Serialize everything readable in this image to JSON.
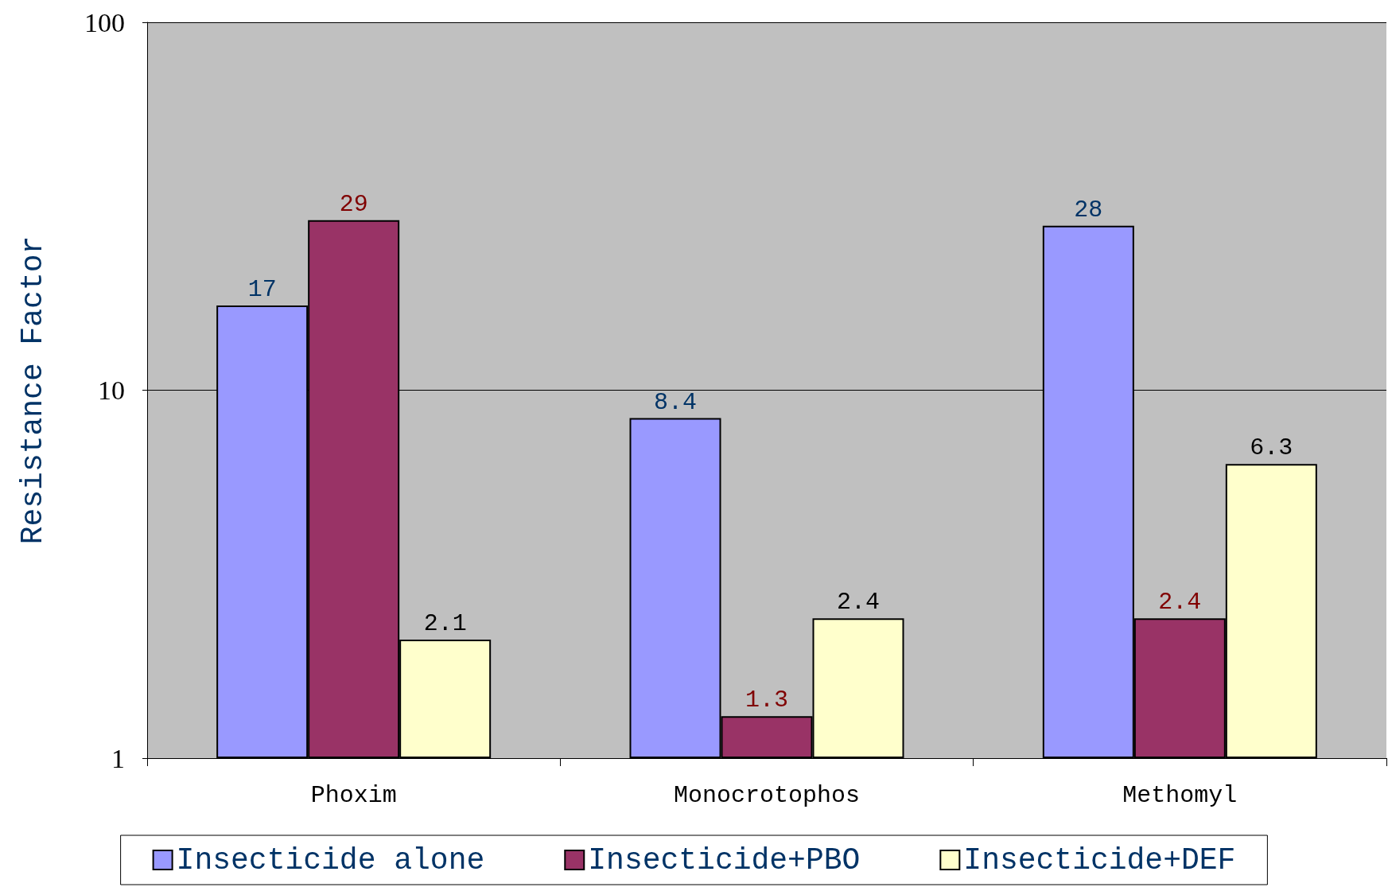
{
  "chart_data": {
    "type": "bar",
    "ylabel": "Resistance Factor",
    "categories": [
      "Phoxim",
      "Monocrotophos",
      "Methomyl"
    ],
    "series": [
      {
        "name": "Insecticide alone",
        "color": "#9999ff",
        "values": [
          17,
          8.4,
          28
        ]
      },
      {
        "name": "Insecticide+PBO",
        "color": "#993366",
        "values": [
          29,
          1.3,
          2.4
        ]
      },
      {
        "name": "Insecticide+DEF",
        "color": "#ffffcc",
        "values": [
          2.1,
          2.4,
          6.3
        ]
      }
    ],
    "log": true,
    "ylim": [
      1,
      100
    ],
    "yticks": [
      1,
      10,
      100
    ],
    "grid": "y",
    "legend": "bottom",
    "data_labels": true
  }
}
